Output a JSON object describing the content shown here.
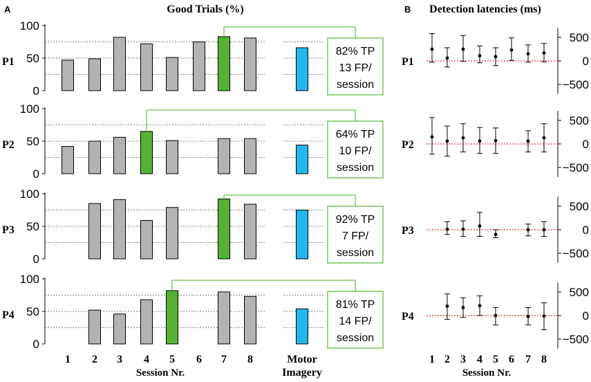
{
  "panels": {
    "a": {
      "letter": "A",
      "title": "Good Trials (%)"
    },
    "b": {
      "letter": "B",
      "title": "Detection latencies (ms)"
    }
  },
  "colors": {
    "bar_default": "#b3b3b5",
    "bar_best": "#56b233",
    "bar_motor": "#21b8ec",
    "connector": "#6cc24a",
    "reference_line": "#e03030",
    "gridline": "#555555"
  },
  "chart_data": [
    {
      "type": "bar",
      "title": "Good Trials (%)",
      "xlabel": "Session Nr.",
      "ylabel": "",
      "ylim": [
        0,
        100
      ],
      "yticks": [
        "0",
        "50",
        "100"
      ],
      "categories": [
        "1",
        "2",
        "3",
        "4",
        "5",
        "6",
        "7",
        "8"
      ],
      "motor_label_line1": "Motor",
      "motor_label_line2": "Imagery",
      "participants": [
        {
          "name": "P1",
          "values": [
            47,
            49,
            82,
            72,
            51,
            75,
            83,
            81
          ],
          "best_session": 7,
          "motor_imagery": 66,
          "summary": [
            "82% TP",
            "13 FP/",
            "session"
          ]
        },
        {
          "name": "P2",
          "values": [
            42,
            50,
            56,
            65,
            51,
            null,
            54,
            54
          ],
          "best_session": 4,
          "motor_imagery": 44,
          "summary": [
            "64% TP",
            "10 FP/",
            "session"
          ]
        },
        {
          "name": "P3",
          "values": [
            null,
            85,
            91,
            59,
            79,
            null,
            92,
            84
          ],
          "best_session": 7,
          "motor_imagery": 75,
          "summary": [
            "92% TP",
            "7 FP/",
            "session"
          ]
        },
        {
          "name": "P4",
          "values": [
            null,
            52,
            46,
            68,
            82,
            null,
            80,
            73
          ],
          "best_session": 5,
          "motor_imagery": 54,
          "summary": [
            "81% TP",
            "14 FP/",
            "session"
          ]
        }
      ]
    },
    {
      "type": "scatter",
      "subtype": "errorbar",
      "title": "Detection latencies (ms)",
      "xlabel": "Session Nr.",
      "ylabel": "",
      "ylim": [
        -700,
        700
      ],
      "yticks": [
        -500,
        0,
        500
      ],
      "ytick_labels": [
        "−500",
        "0",
        "500"
      ],
      "categories": [
        "1",
        "2",
        "3",
        "4",
        "5",
        "6",
        "7",
        "8"
      ],
      "participants": [
        {
          "name": "P1",
          "points": [
            {
              "session": 1,
              "mean": 250,
              "low": -30,
              "high": 580
            },
            {
              "session": 2,
              "mean": 60,
              "low": -130,
              "high": 280
            },
            {
              "session": 3,
              "mean": 250,
              "low": -10,
              "high": 540
            },
            {
              "session": 4,
              "mean": 110,
              "low": -40,
              "high": 320
            },
            {
              "session": 5,
              "mean": 90,
              "low": -100,
              "high": 280
            },
            {
              "session": 6,
              "mean": 230,
              "low": 10,
              "high": 490
            },
            {
              "session": 7,
              "mean": 150,
              "low": -30,
              "high": 340
            },
            {
              "session": 8,
              "mean": 170,
              "low": -20,
              "high": 370
            }
          ]
        },
        {
          "name": "P2",
          "points": [
            {
              "session": 1,
              "mean": 150,
              "low": -220,
              "high": 560
            },
            {
              "session": 2,
              "mean": 60,
              "low": -260,
              "high": 380
            },
            {
              "session": 3,
              "mean": 130,
              "low": -170,
              "high": 430
            },
            {
              "session": 4,
              "mean": 60,
              "low": -200,
              "high": 350
            },
            {
              "session": 5,
              "mean": 70,
              "low": -200,
              "high": 340
            },
            {
              "session": 7,
              "mean": 60,
              "low": -170,
              "high": 280
            },
            {
              "session": 8,
              "mean": 130,
              "low": -170,
              "high": 430
            }
          ]
        },
        {
          "name": "P3",
          "points": [
            {
              "session": 2,
              "mean": 10,
              "low": -100,
              "high": 170
            },
            {
              "session": 3,
              "mean": 10,
              "low": -140,
              "high": 190
            },
            {
              "session": 4,
              "mean": 80,
              "low": -140,
              "high": 370
            },
            {
              "session": 5,
              "mean": -100,
              "low": -170,
              "high": 0
            },
            {
              "session": 7,
              "mean": 0,
              "low": -130,
              "high": 120
            },
            {
              "session": 8,
              "mean": 0,
              "low": -140,
              "high": 170
            }
          ]
        },
        {
          "name": "P4",
          "points": [
            {
              "session": 2,
              "mean": 200,
              "low": -80,
              "high": 460
            },
            {
              "session": 3,
              "mean": 170,
              "low": -40,
              "high": 380
            },
            {
              "session": 4,
              "mean": 210,
              "low": 0,
              "high": 420
            },
            {
              "session": 5,
              "mean": 0,
              "low": -200,
              "high": 170
            },
            {
              "session": 7,
              "mean": -20,
              "low": -200,
              "high": 170
            },
            {
              "session": 8,
              "mean": -10,
              "low": -300,
              "high": 270
            }
          ]
        }
      ]
    }
  ]
}
